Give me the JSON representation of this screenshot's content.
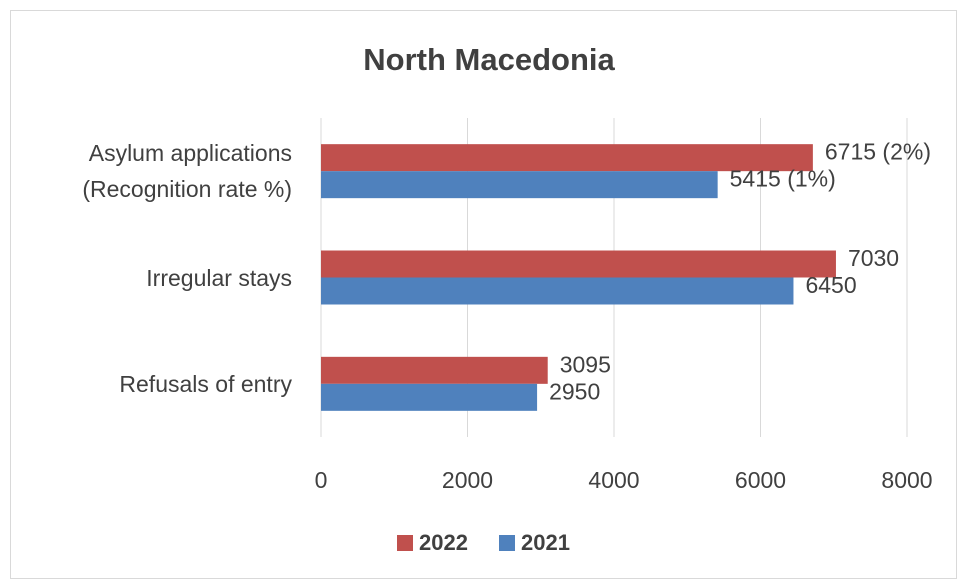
{
  "chart_data": {
    "type": "hbar",
    "title": "North Macedonia",
    "categories": [
      "Asylum applications\n(Recognition rate %)",
      "Irregular stays",
      "Refusals of entry"
    ],
    "series": [
      {
        "name": "2022",
        "color": "#c0504d",
        "values": [
          6715,
          7030,
          3095
        ],
        "value_labels": [
          "6715 (2%)",
          "7030",
          "3095"
        ]
      },
      {
        "name": "2021",
        "color": "#4f81bd",
        "values": [
          5415,
          6450,
          2950
        ],
        "value_labels": [
          "5415 (1%)",
          "6450",
          "2950"
        ]
      }
    ],
    "xlim": [
      0,
      8000
    ],
    "xticks": [
      0,
      2000,
      4000,
      6000,
      8000
    ],
    "grid": true,
    "legend": "bottom"
  }
}
